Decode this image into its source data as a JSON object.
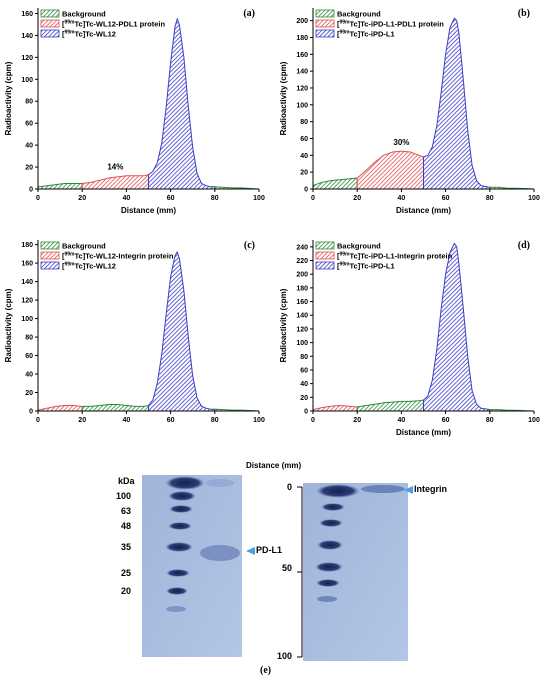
{
  "colors": {
    "background": "#2e8b3a",
    "protein": "#e05050",
    "free": "#3d3dc8",
    "arrow": "#4aa0e0",
    "blot_bg": "#a9bedf",
    "band": "#1a2a5a"
  },
  "chart_data": [
    {
      "type": "area",
      "panel": "(a)",
      "xlabel": "Distance (mm)",
      "ylabel": "Radioactivity (cpm)",
      "xlim": [
        0,
        100
      ],
      "ylim": [
        0,
        165
      ],
      "xticks": [
        0,
        20,
        40,
        60,
        80,
        100
      ],
      "yticks": [
        0,
        20,
        40,
        60,
        80,
        100,
        120,
        140,
        160
      ],
      "legend": [
        {
          "name": "Background",
          "pre": "",
          "sup": "",
          "post": ""
        },
        {
          "name": "[99mTc]Tc-WL12-PDL1 protein",
          "pre": "[",
          "sup": "99m",
          "post": "Tc]Tc-WL12-PDL1 protein"
        },
        {
          "name": "[99mTc]Tc-WL12",
          "pre": "[",
          "sup": "99m",
          "post": "Tc]Tc-WL12"
        }
      ],
      "annotation": {
        "text": "14%",
        "x": 35,
        "y": 18
      },
      "regions": [
        {
          "series": 0,
          "x0": 0,
          "x1": 20
        },
        {
          "series": 1,
          "x0": 20,
          "x1": 50
        },
        {
          "series": 2,
          "x0": 50,
          "x1": 80
        },
        {
          "series": 0,
          "x0": 80,
          "x1": 100
        }
      ],
      "x": [
        0,
        4,
        8,
        12,
        16,
        20,
        24,
        28,
        32,
        36,
        40,
        44,
        48,
        50,
        52,
        54,
        56,
        58,
        60,
        62,
        63,
        64,
        66,
        68,
        70,
        72,
        74,
        76,
        78,
        80,
        84,
        88,
        92,
        96,
        100
      ],
      "y": [
        2,
        3,
        4,
        5,
        5,
        5,
        6,
        8,
        10,
        11,
        12,
        12,
        12,
        13,
        16,
        24,
        42,
        75,
        115,
        148,
        155,
        150,
        120,
        75,
        38,
        14,
        5,
        3,
        2,
        2,
        1.5,
        1,
        1,
        0.5,
        0
      ]
    },
    {
      "type": "area",
      "panel": "(b)",
      "xlabel": "Distance (mm)",
      "ylabel": "Radioactivity (cpm)",
      "xlim": [
        0,
        100
      ],
      "ylim": [
        0,
        215
      ],
      "xticks": [
        0,
        20,
        40,
        60,
        80,
        100
      ],
      "yticks": [
        0,
        20,
        40,
        60,
        80,
        100,
        120,
        140,
        160,
        180,
        200
      ],
      "legend": [
        {
          "name": "Background",
          "pre": "",
          "sup": "",
          "post": ""
        },
        {
          "name": "[99mTc]Tc-iPD-L1-PDL1 protein",
          "pre": "[",
          "sup": "99m",
          "post": "Tc]Tc-iPD-L1-PDL1 protein"
        },
        {
          "name": "[99mTc]Tc-iPD-L1",
          "pre": "[",
          "sup": "99m",
          "post": "Tc]Tc-iPD-L1"
        }
      ],
      "annotation": {
        "text": "30%",
        "x": 40,
        "y": 52
      },
      "regions": [
        {
          "series": 0,
          "x0": 0,
          "x1": 20
        },
        {
          "series": 1,
          "x0": 20,
          "x1": 50
        },
        {
          "series": 2,
          "x0": 50,
          "x1": 80
        },
        {
          "series": 0,
          "x0": 80,
          "x1": 100
        }
      ],
      "x": [
        0,
        4,
        8,
        12,
        16,
        20,
        24,
        28,
        32,
        36,
        40,
        44,
        48,
        50,
        52,
        54,
        56,
        58,
        60,
        62,
        64,
        65,
        66,
        68,
        70,
        72,
        74,
        76,
        78,
        80,
        84,
        88,
        92,
        96,
        100
      ],
      "y": [
        4,
        8,
        10,
        11,
        12,
        13,
        22,
        32,
        40,
        44,
        45,
        44,
        40,
        38,
        40,
        50,
        75,
        115,
        160,
        192,
        203,
        200,
        185,
        130,
        70,
        28,
        10,
        4,
        3,
        2,
        2,
        1,
        1,
        0.5,
        0
      ]
    },
    {
      "type": "area",
      "panel": "(c)",
      "xlabel": "",
      "ylabel": "Radioactivity (cpm)",
      "xlim": [
        0,
        100
      ],
      "ylim": [
        0,
        185
      ],
      "xticks": [
        0,
        20,
        40,
        60,
        80,
        100
      ],
      "yticks": [
        0,
        20,
        40,
        60,
        80,
        100,
        120,
        140,
        160,
        180
      ],
      "legend": [
        {
          "name": "Background",
          "pre": "",
          "sup": "",
          "post": ""
        },
        {
          "name": "[99mTc]Tc-WL12-Integrin protein",
          "pre": "[",
          "sup": "99m",
          "post": "Tc]Tc-WL12-Integrin protein"
        },
        {
          "name": "[99mTc]Tc-WL12",
          "pre": "[",
          "sup": "99m",
          "post": "Tc]Tc-WL12"
        }
      ],
      "regions": [
        {
          "series": 1,
          "x0": 0,
          "x1": 20
        },
        {
          "series": 0,
          "x0": 20,
          "x1": 50
        },
        {
          "series": 2,
          "x0": 50,
          "x1": 80
        },
        {
          "series": 0,
          "x0": 80,
          "x1": 100
        }
      ],
      "x": [
        0,
        4,
        8,
        12,
        16,
        20,
        24,
        28,
        32,
        36,
        40,
        44,
        48,
        50,
        52,
        54,
        56,
        58,
        60,
        62,
        63,
        64,
        66,
        68,
        70,
        72,
        74,
        76,
        78,
        80,
        84,
        88,
        92,
        96,
        100
      ],
      "y": [
        1,
        3,
        5,
        6,
        6,
        5,
        5,
        6,
        7,
        7,
        6,
        5,
        5,
        6,
        12,
        30,
        62,
        105,
        145,
        168,
        172,
        165,
        130,
        80,
        38,
        14,
        5,
        3,
        2,
        2,
        1.5,
        1,
        1,
        0.5,
        0
      ]
    },
    {
      "type": "area",
      "panel": "(d)",
      "xlabel": "Distance (mm)",
      "ylabel": "Radioactivity (cpm)",
      "xlim": [
        0,
        100
      ],
      "ylim": [
        0,
        250
      ],
      "xticks": [
        0,
        20,
        40,
        60,
        80,
        100
      ],
      "yticks": [
        0,
        20,
        40,
        60,
        80,
        100,
        120,
        140,
        160,
        180,
        200,
        220,
        240
      ],
      "legend": [
        {
          "name": "Background",
          "pre": "",
          "sup": "",
          "post": ""
        },
        {
          "name": "[99mTc]Tc-iPD-L1-Integrin protein",
          "pre": "[",
          "sup": "99m",
          "post": "Tc]Tc-iPD-L1-Integrin protein"
        },
        {
          "name": "[99mTc]Tc-iPD-L1",
          "pre": "[",
          "sup": "99m",
          "post": "Tc]Tc-iPD-L1"
        }
      ],
      "regions": [
        {
          "series": 1,
          "x0": 0,
          "x1": 20
        },
        {
          "series": 0,
          "x0": 20,
          "x1": 50
        },
        {
          "series": 2,
          "x0": 50,
          "x1": 80
        },
        {
          "series": 0,
          "x0": 80,
          "x1": 100
        }
      ],
      "x": [
        0,
        4,
        8,
        12,
        16,
        20,
        24,
        28,
        32,
        36,
        40,
        44,
        48,
        50,
        52,
        54,
        56,
        58,
        60,
        62,
        64,
        65,
        66,
        68,
        70,
        72,
        74,
        76,
        78,
        80,
        84,
        88,
        92,
        96,
        100
      ],
      "y": [
        2,
        5,
        7,
        8,
        7,
        6,
        8,
        10,
        12,
        13,
        14,
        14,
        15,
        16,
        22,
        45,
        90,
        150,
        200,
        232,
        245,
        240,
        215,
        150,
        80,
        30,
        10,
        4,
        3,
        2,
        2,
        1,
        1,
        0.5,
        0
      ]
    }
  ],
  "blot": {
    "title": "Distance (mm)",
    "kda_label": "kDa",
    "markers": [
      "100",
      "63",
      "48",
      "35",
      "25",
      "20"
    ],
    "pdl1_label": "PD-L1",
    "integrin_label": "Integrin",
    "distance_ticks": [
      "0",
      "50",
      "100"
    ],
    "panel_tag": "(e)"
  }
}
